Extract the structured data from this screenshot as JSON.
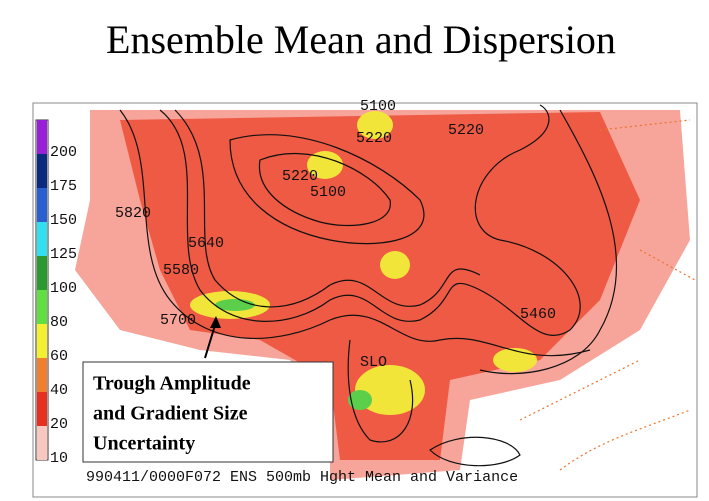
{
  "title": "Ensemble Mean and Dispersion",
  "legend": {
    "levels": [
      200,
      175,
      150,
      125,
      100,
      80,
      60,
      40,
      20,
      10
    ]
  },
  "contour_labels": [
    "5100",
    "5220",
    "5220",
    "5220",
    "5100",
    "5820",
    "5640",
    "5580",
    "5700",
    "5460",
    "SLO"
  ],
  "annotation": {
    "lines": [
      "Trough Amplitude",
      "and Gradient Size",
      "Uncertainty"
    ]
  },
  "caption": "990411/0000F072 ENS 500mb Hght Mean and Variance"
}
